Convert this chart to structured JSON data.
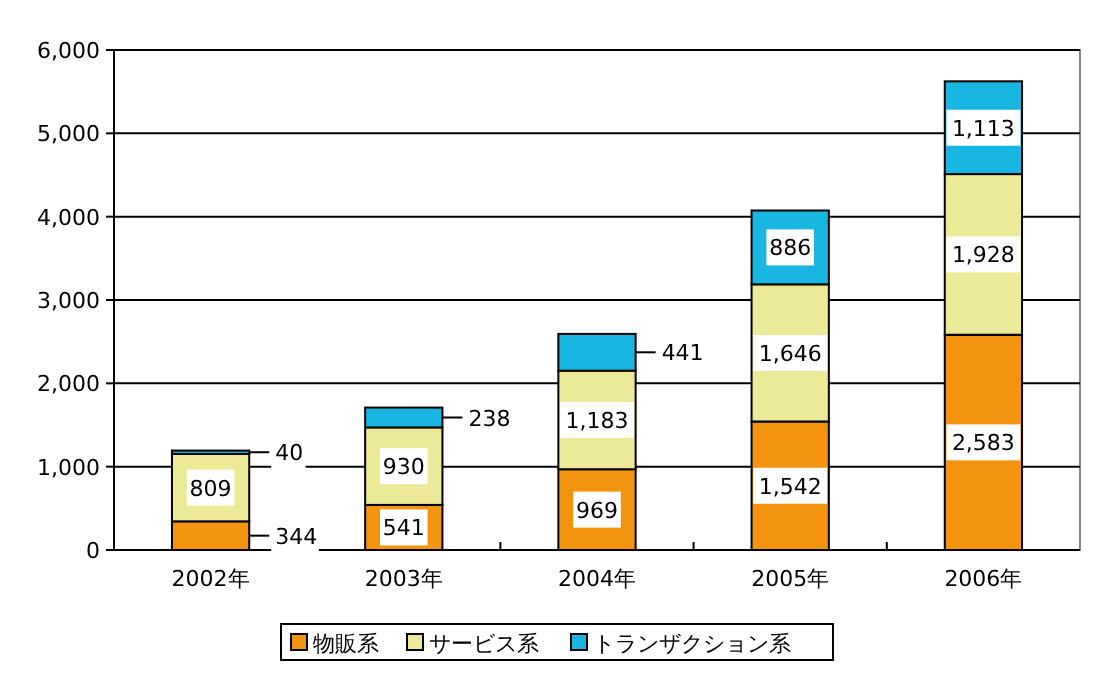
{
  "chart_data": {
    "type": "bar",
    "stacked": true,
    "categories": [
      "2002年",
      "2003年",
      "2004年",
      "2005年",
      "2006年"
    ],
    "series": [
      {
        "name": "物販系",
        "color": "#f29410",
        "values": [
          344,
          541,
          969,
          1542,
          2583
        ],
        "value_labels": [
          "344",
          "541",
          "969",
          "1,542",
          "2,583"
        ]
      },
      {
        "name": "サービス系",
        "color": "#ecea98",
        "values": [
          809,
          930,
          1183,
          1646,
          1928
        ],
        "value_labels": [
          "809",
          "930",
          "1,183",
          "1,646",
          "1,928"
        ]
      },
      {
        "name": "トランザクション系",
        "color": "#19b6e2",
        "values": [
          40,
          238,
          441,
          886,
          1113
        ],
        "value_labels": [
          "40",
          "238",
          "441",
          "886",
          "1,113"
        ]
      }
    ],
    "ylim": [
      0,
      6000
    ],
    "yticks": [
      0,
      {
        "value": 1000,
        "label": "1,000"
      },
      {
        "value": 2000,
        "label": "2,000"
      },
      {
        "value": 3000,
        "label": "3,000"
      },
      {
        "value": 4000,
        "label": "4,000"
      },
      {
        "value": 5000,
        "label": "5,000"
      },
      {
        "value": 6000,
        "label": "6,000"
      }
    ],
    "grid": "y",
    "legend": "bottom"
  }
}
